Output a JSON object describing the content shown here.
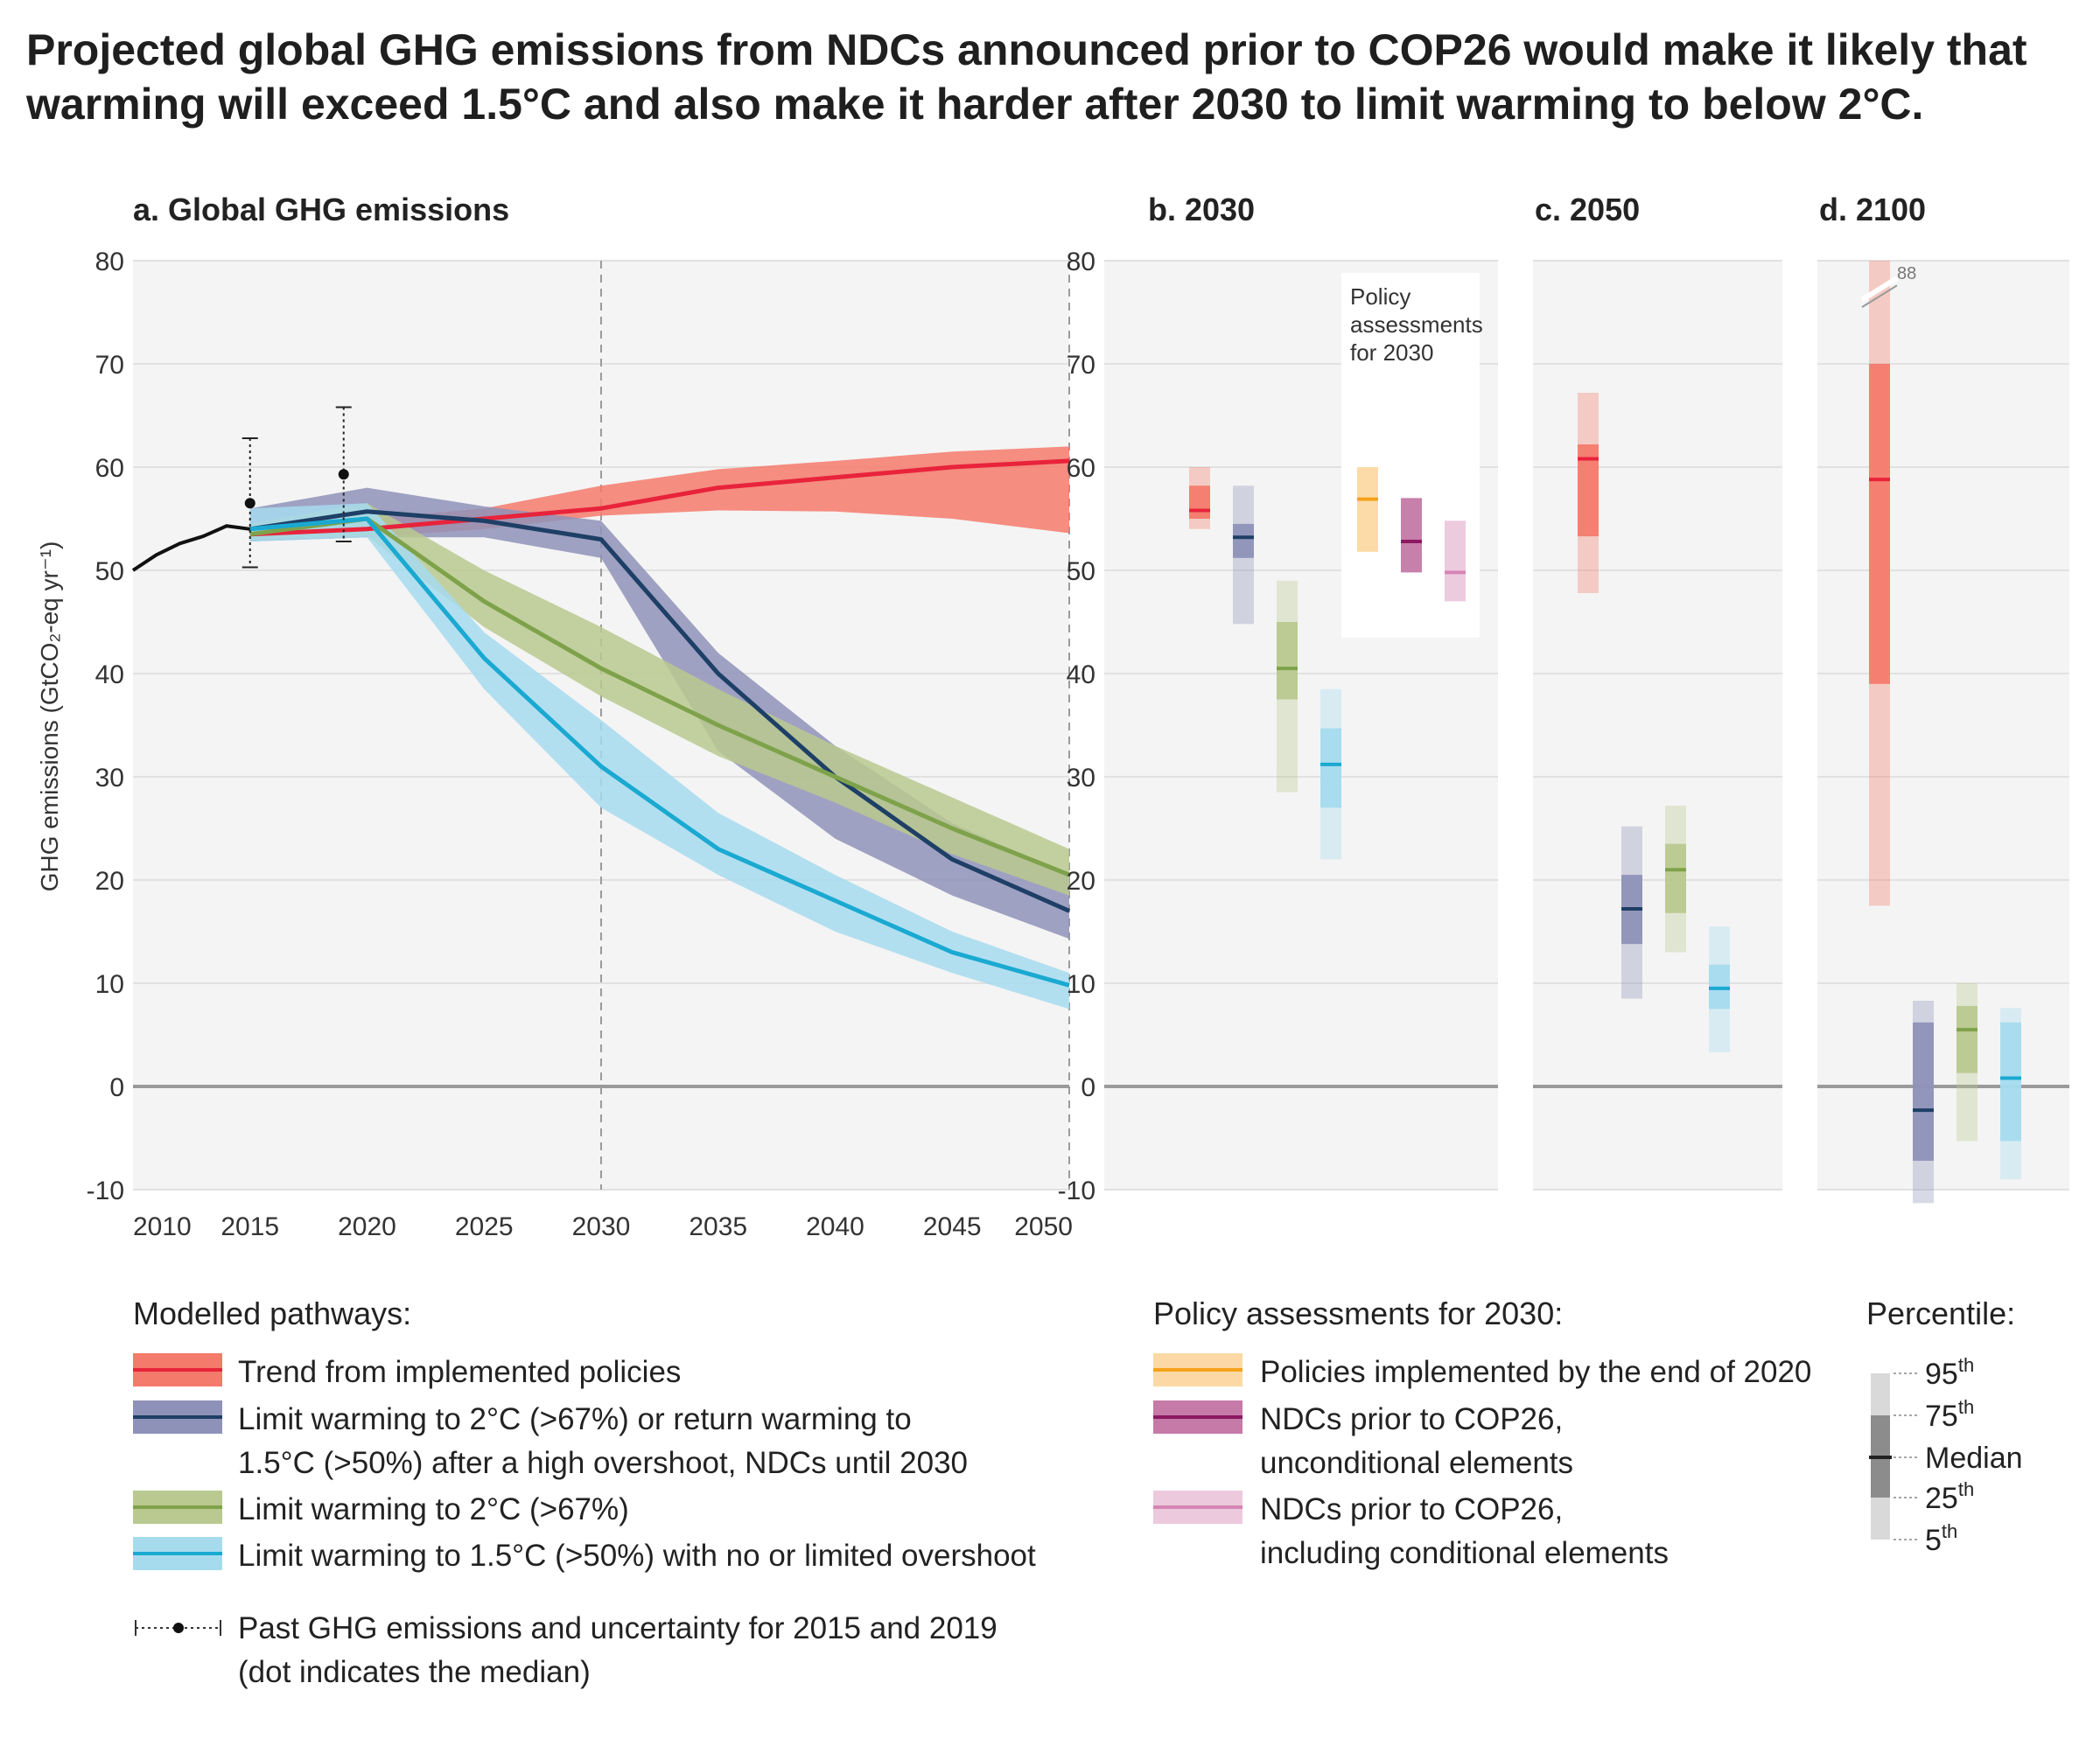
{
  "title_lines": [
    "Projected global GHG emissions from NDCs announced prior to COP26 would make it likely that",
    "warming will exceed 1.5°C and also make it harder after 2030 to limit warming to below 2°C."
  ],
  "colors": {
    "red_line": "#e8233b",
    "red_band": "#f47a6b",
    "navy_line": "#1e3f66",
    "navy_band": "#8f92b8",
    "green_line": "#7ea24a",
    "green_band": "#b9c98f",
    "cyan_line": "#1aa9d1",
    "cyan_band": "#a6dbee",
    "orange_line": "#f5a21a",
    "orange_band": "#fcd9a4",
    "purple_line": "#8b1a62",
    "purple_band": "#c57aa8",
    "pink_line": "#d586b4",
    "pink_band": "#ecc9dd",
    "panel_bg": "#f4f4f4",
    "grid": "#e1e1e1",
    "zero": "#9a9a9a"
  },
  "chart_data": [
    {
      "id": "a",
      "panel_title": "a. Global GHG emissions",
      "type": "line",
      "ylabel": "GHG emissions (GtCO₂-eq yr⁻¹)",
      "ylim": [
        -10,
        80
      ],
      "yticks": [
        -10,
        0,
        10,
        20,
        30,
        40,
        50,
        60,
        70,
        80
      ],
      "xlim": [
        2010,
        2050
      ],
      "xticks": [
        2010,
        2015,
        2020,
        2025,
        2030,
        2035,
        2040,
        2045,
        2050
      ],
      "vline_x": 2030,
      "historical": {
        "x": [
          2010,
          2011,
          2012,
          2013,
          2014,
          2015
        ],
        "y": [
          50.0,
          51.5,
          52.6,
          53.3,
          54.3,
          54.0
        ],
        "uncertainty": [
          {
            "x": 2015,
            "median": 56.5,
            "low": 50.3,
            "high": 62.8
          },
          {
            "x": 2019,
            "median": 59.3,
            "low": 52.8,
            "high": 65.8
          }
        ]
      },
      "series": [
        {
          "key": "red",
          "x": [
            2015,
            2020,
            2025,
            2030,
            2035,
            2040,
            2045,
            2050
          ],
          "median": [
            53.5,
            54.0,
            55.0,
            56.0,
            58.0,
            59.0,
            60.0,
            60.6
          ],
          "low": [
            53.0,
            53.2,
            54.0,
            55.3,
            55.8,
            55.7,
            55.0,
            53.6
          ],
          "high": [
            54.0,
            55.0,
            56.0,
            58.2,
            59.8,
            60.6,
            61.5,
            62.0
          ]
        },
        {
          "key": "navy",
          "x": [
            2015,
            2020,
            2025,
            2030,
            2035,
            2040,
            2045,
            2050
          ],
          "median": [
            54.0,
            55.7,
            54.8,
            53.0,
            40.0,
            30.0,
            22.0,
            17.0
          ],
          "low": [
            52.8,
            53.2,
            53.2,
            51.2,
            32.5,
            24.0,
            18.5,
            14.3
          ],
          "high": [
            56.0,
            58.0,
            56.2,
            54.8,
            42.0,
            33.0,
            25.5,
            20.5
          ]
        },
        {
          "key": "green",
          "x": [
            2015,
            2020,
            2025,
            2030,
            2035,
            2040,
            2045,
            2050
          ],
          "median": [
            53.5,
            55.0,
            47.0,
            40.5,
            35.0,
            30.0,
            25.0,
            20.5
          ],
          "low": [
            53.0,
            53.3,
            44.5,
            37.8,
            32.0,
            27.5,
            22.5,
            18.5
          ],
          "high": [
            54.5,
            56.5,
            50.0,
            44.5,
            38.5,
            33.0,
            28.0,
            23.0
          ]
        },
        {
          "key": "cyan",
          "x": [
            2015,
            2020,
            2025,
            2030,
            2035,
            2040,
            2045,
            2050
          ],
          "median": [
            54.0,
            55.0,
            41.5,
            31.0,
            23.0,
            18.0,
            13.0,
            9.8
          ],
          "low": [
            52.8,
            53.2,
            38.5,
            27.0,
            20.5,
            15.0,
            11.0,
            7.5
          ],
          "high": [
            56.0,
            56.5,
            44.0,
            35.5,
            26.5,
            20.5,
            15.0,
            11.0
          ]
        }
      ]
    },
    {
      "id": "b",
      "panel_title": "b. 2030",
      "type": "box",
      "ylim": [
        -10,
        80
      ],
      "yticks": [
        -10,
        0,
        10,
        20,
        30,
        40,
        50,
        60,
        70,
        80
      ],
      "policy_box_label": [
        "Policy",
        "assessments",
        "for 2030"
      ],
      "boxes": [
        {
          "key": "red",
          "p5": 54.0,
          "p25": 55.0,
          "median": 55.8,
          "p75": 58.2,
          "p95": 60.0
        },
        {
          "key": "navy",
          "p5": 44.8,
          "p25": 51.2,
          "median": 53.2,
          "p75": 54.5,
          "p95": 58.2
        },
        {
          "key": "green",
          "p5": 28.5,
          "p25": 37.5,
          "median": 40.5,
          "p75": 45.0,
          "p95": 49.0
        },
        {
          "key": "cyan",
          "p5": 22.0,
          "p25": 27.0,
          "median": 31.2,
          "p75": 34.7,
          "p95": 38.5
        },
        {
          "key": "orange",
          "p5": 51.8,
          "p25": 51.8,
          "median": 56.9,
          "p75": 60.0,
          "p95": 60.0
        },
        {
          "key": "purple",
          "p5": 49.8,
          "p25": 49.8,
          "median": 52.8,
          "p75": 57.0,
          "p95": 57.0
        },
        {
          "key": "pink",
          "p5": 47.0,
          "p25": 47.0,
          "median": 49.8,
          "p75": 54.8,
          "p95": 54.8
        }
      ]
    },
    {
      "id": "c",
      "panel_title": "c. 2050",
      "type": "box",
      "ylim": [
        -10,
        80
      ],
      "boxes": [
        {
          "key": "red",
          "p5": 47.8,
          "p25": 53.3,
          "median": 60.8,
          "p75": 62.2,
          "p95": 67.2
        },
        {
          "key": "navy",
          "p5": 8.5,
          "p25": 13.8,
          "median": 17.2,
          "p75": 20.5,
          "p95": 25.2
        },
        {
          "key": "green",
          "p5": 13.0,
          "p25": 16.8,
          "median": 21.0,
          "p75": 23.5,
          "p95": 27.2
        },
        {
          "key": "cyan",
          "p5": 3.3,
          "p25": 7.5,
          "median": 9.5,
          "p75": 11.8,
          "p95": 15.5
        }
      ]
    },
    {
      "id": "d",
      "panel_title": "d. 2100",
      "type": "box",
      "ylim": [
        -10,
        80
      ],
      "clip_label": "88",
      "boxes": [
        {
          "key": "red",
          "p5": 17.5,
          "p25": 39.0,
          "median": 58.8,
          "p75": 70.0,
          "p95": 88
        },
        {
          "key": "navy",
          "p5": -11.3,
          "p25": -7.2,
          "median": -2.3,
          "p75": 6.2,
          "p95": 8.3
        },
        {
          "key": "green",
          "p5": -5.3,
          "p25": 1.3,
          "median": 5.5,
          "p75": 7.8,
          "p95": 10.0
        },
        {
          "key": "cyan",
          "p5": -9.0,
          "p25": -5.3,
          "median": 0.8,
          "p75": 6.2,
          "p95": 7.6
        }
      ]
    }
  ],
  "legend": {
    "modelled_title": "Modelled pathways:",
    "modelled": [
      {
        "key": "red",
        "lines": [
          "Trend from implemented policies"
        ]
      },
      {
        "key": "navy",
        "lines": [
          "Limit warming to 2°C (>67%) or return warming to",
          "1.5°C (>50%) after a high overshoot, NDCs until 2030"
        ]
      },
      {
        "key": "green",
        "lines": [
          "Limit warming to 2°C (>67%)"
        ]
      },
      {
        "key": "cyan",
        "lines": [
          "Limit warming to 1.5°C (>50%) with no or limited overshoot"
        ]
      }
    ],
    "past_lines": [
      "Past GHG emissions and uncertainty for 2015 and 2019",
      "(dot indicates the median)"
    ],
    "policy_title": "Policy assessments for 2030:",
    "policy": [
      {
        "key": "orange",
        "lines": [
          "Policies implemented by the end of 2020"
        ]
      },
      {
        "key": "purple",
        "lines": [
          "NDCs prior to COP26,",
          "unconditional elements"
        ]
      },
      {
        "key": "pink",
        "lines": [
          "NDCs prior to COP26,",
          "including conditional elements"
        ]
      }
    ],
    "percentile_title": "Percentile:",
    "percentiles": [
      {
        "num": "95",
        "sup": "th"
      },
      {
        "num": "75",
        "sup": "th"
      },
      {
        "num": "Median",
        "sup": ""
      },
      {
        "num": "25",
        "sup": "th"
      },
      {
        "num": "5",
        "sup": "th"
      }
    ]
  }
}
